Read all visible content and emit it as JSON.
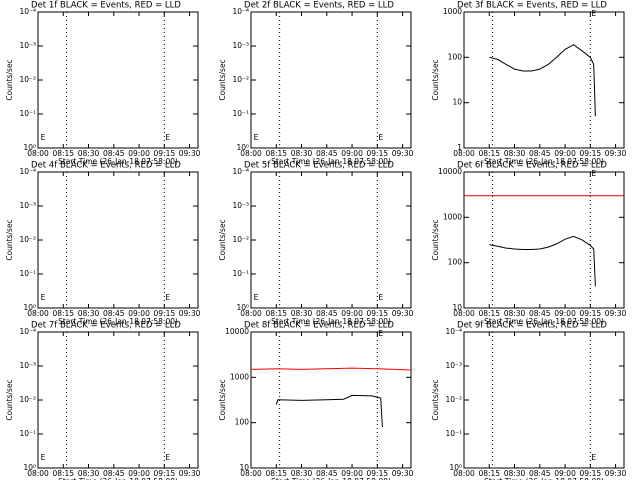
{
  "chart_data": [
    {
      "type": "line",
      "title": "Det 1f BLACK = Events, RED = LLD",
      "xlabel": "Start Time (26-Jan-18 07:58:00)",
      "ylabel": "Counts/sec",
      "log_y": true,
      "xlim": [
        "08:00",
        "09:35"
      ],
      "xticks": [
        "08:00",
        "08:15",
        "08:30",
        "08:45",
        "09:00",
        "09:15",
        "09:30"
      ],
      "ylim": [
        1,
        0.0001
      ],
      "yticks": [
        {
          "value": 1,
          "label": "10⁰"
        },
        {
          "value": 0.1,
          "label": "10⁻¹"
        },
        {
          "value": 0.01,
          "label": "10⁻²"
        },
        {
          "value": 0.001,
          "label": "10⁻³"
        },
        {
          "value": 0.0001,
          "label": "10⁻⁴"
        }
      ],
      "vlines": [
        "08:17",
        "09:15"
      ],
      "annotations": [
        {
          "text": "E",
          "x": "08:01"
        },
        {
          "text": "E",
          "x": "09:15"
        }
      ],
      "series": []
    },
    {
      "type": "line",
      "title": "Det 2f BLACK = Events, RED = LLD",
      "xlabel": "Start Time (26-Jan-18 07:58:00)",
      "ylabel": "Counts/sec",
      "log_y": true,
      "xlim": [
        "08:00",
        "09:35"
      ],
      "xticks": [
        "08:00",
        "08:15",
        "08:30",
        "08:45",
        "09:00",
        "09:15",
        "09:30"
      ],
      "ylim": [
        1,
        0.0001
      ],
      "yticks": [
        {
          "value": 1,
          "label": "10⁰"
        },
        {
          "value": 0.1,
          "label": "10⁻¹"
        },
        {
          "value": 0.01,
          "label": "10⁻²"
        },
        {
          "value": 0.001,
          "label": "10⁻³"
        },
        {
          "value": 0.0001,
          "label": "10⁻⁴"
        }
      ],
      "vlines": [
        "08:17",
        "09:15"
      ],
      "annotations": [
        {
          "text": "E",
          "x": "08:01"
        },
        {
          "text": "E",
          "x": "09:15"
        }
      ],
      "series": []
    },
    {
      "type": "line",
      "title": "Det 3f BLACK = Events, RED = LLD",
      "xlabel": "Start Time (26-Jan-18 07:58:00)",
      "ylabel": "Counts/sec",
      "log_y": true,
      "xlim": [
        "08:00",
        "09:35"
      ],
      "xticks": [
        "08:00",
        "08:15",
        "08:30",
        "08:45",
        "09:00",
        "09:15",
        "09:30"
      ],
      "ylim": [
        1,
        1000
      ],
      "yticks": [
        1,
        10,
        100,
        1000
      ],
      "vlines": [
        "08:17",
        "09:15"
      ],
      "annotations": [
        {
          "text": "E",
          "x": "09:15"
        }
      ],
      "series": [
        {
          "name": "Events",
          "color": "#000000",
          "x": [
            "08:15",
            "08:20",
            "08:25",
            "08:30",
            "08:35",
            "08:40",
            "08:45",
            "08:50",
            "08:55",
            "09:00",
            "09:05",
            "09:10",
            "09:15",
            "09:17",
            "09:18"
          ],
          "values": [
            100,
            90,
            70,
            55,
            50,
            50,
            55,
            70,
            100,
            150,
            190,
            140,
            100,
            70,
            5
          ]
        }
      ]
    },
    {
      "type": "line",
      "title": "Det 4f BLACK = Events, RED = LLD",
      "xlabel": "Start Time (26-Jan-18 07:58:00)",
      "ylabel": "Counts/sec",
      "log_y": true,
      "xlim": [
        "08:00",
        "09:35"
      ],
      "xticks": [
        "08:00",
        "08:15",
        "08:30",
        "08:45",
        "09:00",
        "09:15",
        "09:30"
      ],
      "ylim": [
        1,
        0.0001
      ],
      "yticks": [
        {
          "value": 1,
          "label": "10⁰"
        },
        {
          "value": 0.1,
          "label": "10⁻¹"
        },
        {
          "value": 0.01,
          "label": "10⁻²"
        },
        {
          "value": 0.001,
          "label": "10⁻³"
        },
        {
          "value": 0.0001,
          "label": "10⁻⁴"
        }
      ],
      "vlines": [
        "08:17",
        "09:15"
      ],
      "annotations": [
        {
          "text": "E",
          "x": "08:01"
        },
        {
          "text": "E",
          "x": "09:15"
        }
      ],
      "series": []
    },
    {
      "type": "line",
      "title": "Det 5f BLACK = Events, RED = LLD",
      "xlabel": "Start Time (26-Jan-18 07:58:00)",
      "ylabel": "Counts/sec",
      "log_y": true,
      "xlim": [
        "08:00",
        "09:35"
      ],
      "xticks": [
        "08:00",
        "08:15",
        "08:30",
        "08:45",
        "09:00",
        "09:15",
        "09:30"
      ],
      "ylim": [
        1,
        0.0001
      ],
      "yticks": [
        {
          "value": 1,
          "label": "10⁰"
        },
        {
          "value": 0.1,
          "label": "10⁻¹"
        },
        {
          "value": 0.01,
          "label": "10⁻²"
        },
        {
          "value": 0.001,
          "label": "10⁻³"
        },
        {
          "value": 0.0001,
          "label": "10⁻⁴"
        }
      ],
      "vlines": [
        "08:17",
        "09:15"
      ],
      "annotations": [
        {
          "text": "E",
          "x": "08:01"
        },
        {
          "text": "E",
          "x": "09:15"
        }
      ],
      "series": []
    },
    {
      "type": "line",
      "title": "Det 6f BLACK = Events, RED = LLD",
      "xlabel": "Start Time (26-Jan-18 07:58:00)",
      "ylabel": "Counts/sec",
      "log_y": true,
      "xlim": [
        "08:00",
        "09:35"
      ],
      "xticks": [
        "08:00",
        "08:15",
        "08:30",
        "08:45",
        "09:00",
        "09:15",
        "09:30"
      ],
      "ylim": [
        10,
        10000
      ],
      "yticks": [
        10,
        100,
        1000,
        10000
      ],
      "vlines": [
        "08:17",
        "09:15"
      ],
      "annotations": [
        {
          "text": "E",
          "x": "09:15"
        }
      ],
      "series": [
        {
          "name": "LLD",
          "color": "#ff0000",
          "x": [
            "08:00",
            "09:35"
          ],
          "values": [
            3000,
            3000
          ]
        },
        {
          "name": "Events",
          "color": "#000000",
          "x": [
            "08:15",
            "08:20",
            "08:25",
            "08:30",
            "08:35",
            "08:40",
            "08:45",
            "08:50",
            "08:55",
            "09:00",
            "09:05",
            "09:10",
            "09:15",
            "09:17",
            "09:18"
          ],
          "values": [
            250,
            230,
            210,
            200,
            195,
            195,
            200,
            220,
            260,
            330,
            380,
            320,
            240,
            200,
            30
          ]
        }
      ]
    },
    {
      "type": "line",
      "title": "Det 7f BLACK = Events, RED = LLD",
      "xlabel": "Start Time (26-Jan-18 07:58:00)",
      "ylabel": "Counts/sec",
      "log_y": true,
      "xlim": [
        "08:00",
        "09:35"
      ],
      "xticks": [
        "08:00",
        "08:15",
        "08:30",
        "08:45",
        "09:00",
        "09:15",
        "09:30"
      ],
      "ylim": [
        1,
        0.0001
      ],
      "yticks": [
        {
          "value": 1,
          "label": "10⁰"
        },
        {
          "value": 0.1,
          "label": "10⁻¹"
        },
        {
          "value": 0.01,
          "label": "10⁻²"
        },
        {
          "value": 0.001,
          "label": "10⁻³"
        },
        {
          "value": 0.0001,
          "label": "10⁻⁴"
        }
      ],
      "vlines": [
        "08:17",
        "09:15"
      ],
      "annotations": [
        {
          "text": "E",
          "x": "08:01"
        },
        {
          "text": "E",
          "x": "09:15"
        }
      ],
      "series": []
    },
    {
      "type": "line",
      "title": "Det 8f BLACK = Events, RED = LLD",
      "xlabel": "Start Time (26-Jan-18 07:58:00)",
      "ylabel": "Counts/sec",
      "log_y": true,
      "xlim": [
        "08:00",
        "09:35"
      ],
      "xticks": [
        "08:00",
        "08:15",
        "08:30",
        "08:45",
        "09:00",
        "09:15",
        "09:30"
      ],
      "ylim": [
        10,
        10000
      ],
      "yticks": [
        10,
        100,
        1000,
        10000
      ],
      "vlines": [
        "08:17",
        "09:15"
      ],
      "annotations": [
        {
          "text": "E",
          "x": "09:15"
        }
      ],
      "series": [
        {
          "name": "LLD",
          "color": "#ff0000",
          "x": [
            "08:00",
            "08:15",
            "08:30",
            "08:45",
            "09:00",
            "09:15",
            "09:35"
          ],
          "values": [
            1500,
            1550,
            1500,
            1550,
            1600,
            1550,
            1450
          ]
        },
        {
          "name": "Events",
          "color": "#000000",
          "x": [
            "08:15",
            "08:16",
            "08:30",
            "08:45",
            "08:55",
            "09:00",
            "09:12",
            "09:15",
            "09:17",
            "09:18"
          ],
          "values": [
            250,
            320,
            310,
            320,
            330,
            400,
            390,
            360,
            350,
            80
          ]
        }
      ]
    },
    {
      "type": "line",
      "title": "Det 9f BLACK = Events, RED = LLD",
      "xlabel": "Start Time (26-Jan-18 07:58:00)",
      "ylabel": "Counts/sec",
      "log_y": true,
      "xlim": [
        "08:00",
        "09:35"
      ],
      "xticks": [
        "08:00",
        "08:15",
        "08:30",
        "08:45",
        "09:00",
        "09:15",
        "09:30"
      ],
      "ylim": [
        1,
        0.0001
      ],
      "yticks": [
        {
          "value": 1,
          "label": "10⁰"
        },
        {
          "value": 0.1,
          "label": "10⁻¹"
        },
        {
          "value": 0.01,
          "label": "10⁻²"
        },
        {
          "value": 0.001,
          "label": "10⁻³"
        },
        {
          "value": 0.0001,
          "label": "10⁻⁴"
        }
      ],
      "vlines": [
        "08:17",
        "09:15"
      ],
      "annotations": [
        {
          "text": "E",
          "x": "09:15"
        }
      ],
      "series": []
    }
  ]
}
